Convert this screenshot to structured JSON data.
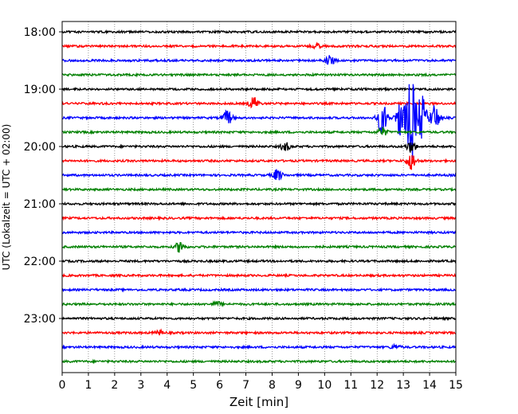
{
  "chart_data": {
    "type": "line",
    "title": "",
    "xlabel": "Zeit  [min]",
    "ylabel": "UTC (Lokalzeit = UTC + 02:00)",
    "xlim": [
      0,
      15
    ],
    "x_ticks": [
      "0",
      "1",
      "2",
      "3",
      "4",
      "5",
      "6",
      "7",
      "8",
      "9",
      "10",
      "11",
      "12",
      "13",
      "14",
      "15"
    ],
    "y_tick_labels": [
      "18:00",
      "19:00",
      "20:00",
      "21:00",
      "22:00",
      "23:00"
    ],
    "grid": "vertical dotted",
    "trace_interval_min": 15,
    "trace_colors": [
      "#000000",
      "#ff0000",
      "#0000ff",
      "#008000"
    ],
    "traces": [
      {
        "start": "18:00",
        "color": "#000000",
        "events": []
      },
      {
        "start": "18:15",
        "color": "#ff0000",
        "events": [
          {
            "t": 9.7,
            "amp": 0.15
          }
        ]
      },
      {
        "start": "18:30",
        "color": "#0000ff",
        "events": [
          {
            "t": 10.2,
            "amp": 0.35
          }
        ]
      },
      {
        "start": "18:45",
        "color": "#008000",
        "events": []
      },
      {
        "start": "19:00",
        "color": "#000000",
        "events": []
      },
      {
        "start": "19:15",
        "color": "#ff0000",
        "events": [
          {
            "t": 7.3,
            "amp": 0.45
          }
        ]
      },
      {
        "start": "19:30",
        "color": "#0000ff",
        "events": [
          {
            "t": 6.3,
            "amp": 0.5
          },
          {
            "t": 12.2,
            "amp": 1.2
          },
          {
            "t": 12.9,
            "amp": 1.4
          },
          {
            "t": 13.3,
            "amp": 3.0
          },
          {
            "t": 13.7,
            "amp": 1.6
          },
          {
            "t": 14.2,
            "amp": 0.9
          }
        ]
      },
      {
        "start": "19:45",
        "color": "#008000",
        "events": [
          {
            "t": 12.2,
            "amp": 0.3
          }
        ]
      },
      {
        "start": "20:00",
        "color": "#000000",
        "events": [
          {
            "t": 8.5,
            "amp": 0.3
          },
          {
            "t": 13.3,
            "amp": 0.4
          }
        ]
      },
      {
        "start": "20:15",
        "color": "#ff0000",
        "events": [
          {
            "t": 13.3,
            "amp": 0.6
          }
        ]
      },
      {
        "start": "20:30",
        "color": "#0000ff",
        "events": [
          {
            "t": 8.2,
            "amp": 0.4
          }
        ]
      },
      {
        "start": "20:45",
        "color": "#008000",
        "events": []
      },
      {
        "start": "21:00",
        "color": "#000000",
        "events": []
      },
      {
        "start": "21:15",
        "color": "#ff0000",
        "events": []
      },
      {
        "start": "21:30",
        "color": "#0000ff",
        "events": []
      },
      {
        "start": "21:45",
        "color": "#008000",
        "events": [
          {
            "t": 4.5,
            "amp": 0.4
          }
        ]
      },
      {
        "start": "22:00",
        "color": "#000000",
        "events": []
      },
      {
        "start": "22:15",
        "color": "#ff0000",
        "events": []
      },
      {
        "start": "22:30",
        "color": "#0000ff",
        "events": []
      },
      {
        "start": "22:45",
        "color": "#008000",
        "events": [
          {
            "t": 5.9,
            "amp": 0.15
          }
        ]
      },
      {
        "start": "23:00",
        "color": "#000000",
        "events": []
      },
      {
        "start": "23:15",
        "color": "#ff0000",
        "events": [
          {
            "t": 3.7,
            "amp": 0.15
          }
        ]
      },
      {
        "start": "23:30",
        "color": "#0000ff",
        "events": [
          {
            "t": 12.7,
            "amp": 0.15
          }
        ]
      },
      {
        "start": "23:45",
        "color": "#008000",
        "events": []
      }
    ]
  }
}
